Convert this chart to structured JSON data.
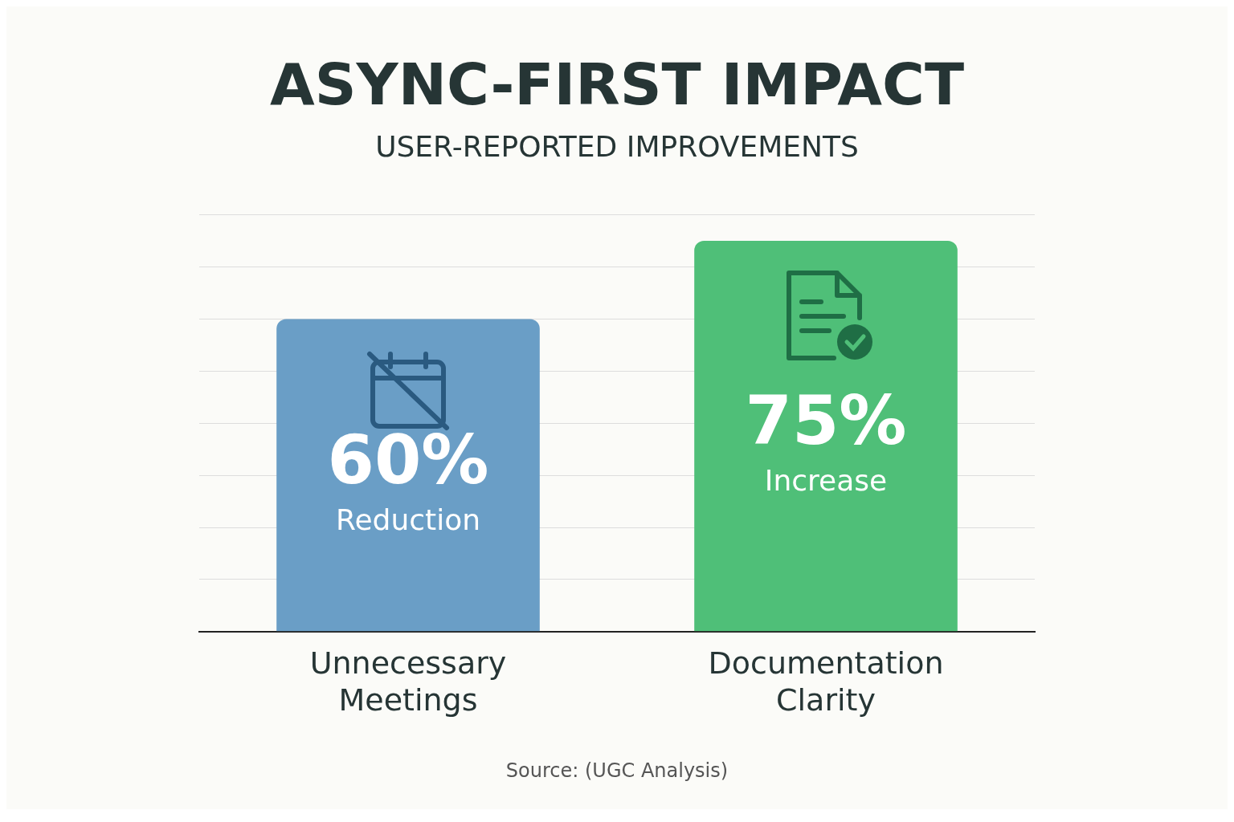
{
  "chart_data": {
    "type": "bar",
    "title": "ASYNC-FIRST IMPACT",
    "subtitle": "USER-REPORTED IMPROVEMENTS",
    "categories": [
      "Unnecessary Meetings",
      "Documentation Clarity"
    ],
    "values": [
      60,
      75
    ],
    "colors": [
      "#6a9ec6",
      "#4fbf78"
    ],
    "value_labels": [
      "60%",
      "75%"
    ],
    "annotations": [
      "Reduction",
      "Increase",
      "Source: (UGC Analysis)"
    ],
    "grid": "y",
    "tick_labels": "x",
    "legend": false
  }
}
